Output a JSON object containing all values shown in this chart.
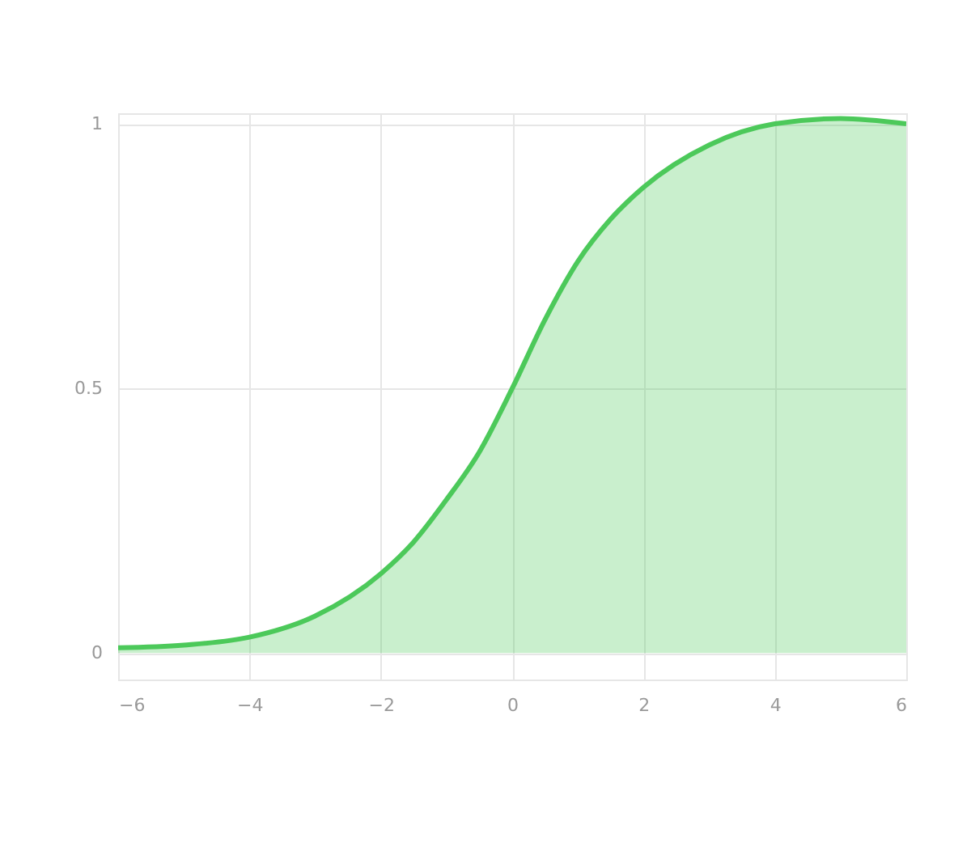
{
  "chart_data": {
    "type": "area",
    "x": [
      -6,
      -5,
      -4,
      -3,
      -2,
      -1.5,
      -1,
      -0.5,
      0,
      0.5,
      1,
      1.5,
      2,
      3,
      4,
      5,
      6
    ],
    "series": [
      {
        "color": "#4cc95a",
        "values": [
          0.01,
          0.015,
          0.03,
          0.07,
          0.15,
          0.21,
          0.29,
          0.38,
          0.5,
          0.63,
          0.74,
          0.82,
          0.88,
          0.96,
          1.0,
          1.01,
          1.0
        ]
      }
    ],
    "xlim": [
      -6,
      6
    ],
    "xticks": [
      -6,
      -4,
      -2,
      0,
      2,
      4,
      6
    ],
    "ylim": [
      -0.05,
      1.02
    ],
    "yticks": [
      0,
      0.5,
      1
    ],
    "grid": true
  }
}
